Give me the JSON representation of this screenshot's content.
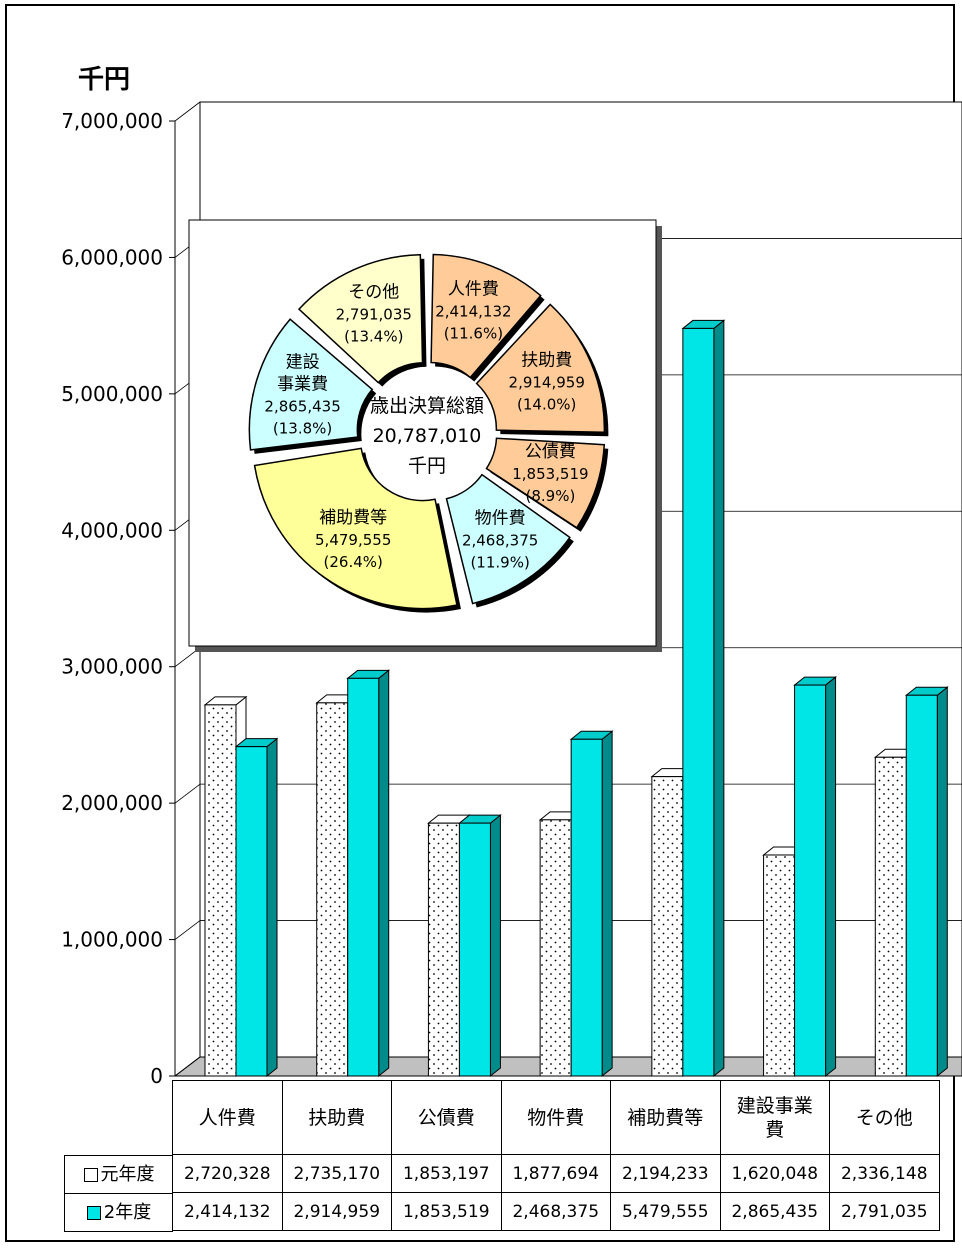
{
  "chart_data": [
    {
      "type": "bar",
      "ylabel": "千円",
      "ylim": [
        0,
        7000000
      ],
      "yticks": [
        0,
        1000000,
        2000000,
        3000000,
        4000000,
        5000000,
        6000000,
        7000000
      ],
      "ytick_labels": [
        "0",
        "1,000,000",
        "2,000,000",
        "3,000,000",
        "4,000,000",
        "5,000,000",
        "6,000,000",
        "7,000,000"
      ],
      "grid": true,
      "categories": [
        "人件費",
        "扶助費",
        "公債費",
        "物件費",
        "補助費等",
        "建設事業費",
        "その他"
      ],
      "series": [
        {
          "name": "元年度",
          "values": [
            2720328,
            2735170,
            1853197,
            1877694,
            2194233,
            1620048,
            2336148
          ],
          "labels": [
            "2,720,328",
            "2,735,170",
            "1,853,197",
            "1,877,694",
            "2,194,233",
            "1,620,048",
            "2,336,148"
          ]
        },
        {
          "name": "2年度",
          "values": [
            2414132,
            2914959,
            1853519,
            2468375,
            5479555,
            2865435,
            2791035
          ],
          "labels": [
            "2,414,132",
            "2,914,959",
            "1,853,519",
            "2,468,375",
            "5,479,555",
            "2,865,435",
            "2,791,035"
          ]
        }
      ],
      "table": {
        "row_labels": [
          "元年度",
          "2年度"
        ]
      }
    },
    {
      "type": "pie",
      "center_label": [
        "歳出決算総額",
        "20,787,010",
        "千円"
      ],
      "slices": [
        {
          "name": "人件費",
          "value": 2414132,
          "value_label": "2,414,132",
          "pct_label": "(11.6%)",
          "color": "#ffcc99"
        },
        {
          "name": "扶助費",
          "value": 2914959,
          "value_label": "2,914,959",
          "pct_label": "(14.0%)",
          "color": "#ffcc99"
        },
        {
          "name": "公債費",
          "value": 1853519,
          "value_label": "1,853,519",
          "pct_label": "(8.9%)",
          "color": "#ffcc99"
        },
        {
          "name": "物件費",
          "value": 2468375,
          "value_label": "2,468,375",
          "pct_label": "(11.9%)",
          "color": "#ccffff"
        },
        {
          "name": "補助費等",
          "value": 5479555,
          "value_label": "5,479,555",
          "pct_label": "(26.4%)",
          "color": "#ffff99"
        },
        {
          "name": "建設事業費",
          "value": 2865435,
          "value_label": "2,865,435",
          "pct_label": "(13.8%)",
          "color": "#ccffff"
        },
        {
          "name": "その他",
          "value": 2791035,
          "value_label": "2,791,035",
          "pct_label": "(13.4%)",
          "color": "#ffffcc"
        }
      ]
    }
  ],
  "table_head": [
    [
      "人件費"
    ],
    [
      "扶助費"
    ],
    [
      "公債費"
    ],
    [
      "物件費"
    ],
    [
      "補助費等"
    ],
    [
      "建設事業",
      "費"
    ],
    [
      "その他"
    ]
  ],
  "pie_name_lines": [
    [
      "人件費"
    ],
    [
      "扶助費"
    ],
    [
      "公債費"
    ],
    [
      "物件費"
    ],
    [
      "補助費等"
    ],
    [
      "建設",
      "事業費"
    ],
    [
      "その他"
    ]
  ],
  "colors": {
    "series0": "#ffffff",
    "series1": "#00e5e5",
    "series1_side": "#008b8b",
    "series1_top": "#00cccc",
    "floor": "#c0c0c0"
  }
}
